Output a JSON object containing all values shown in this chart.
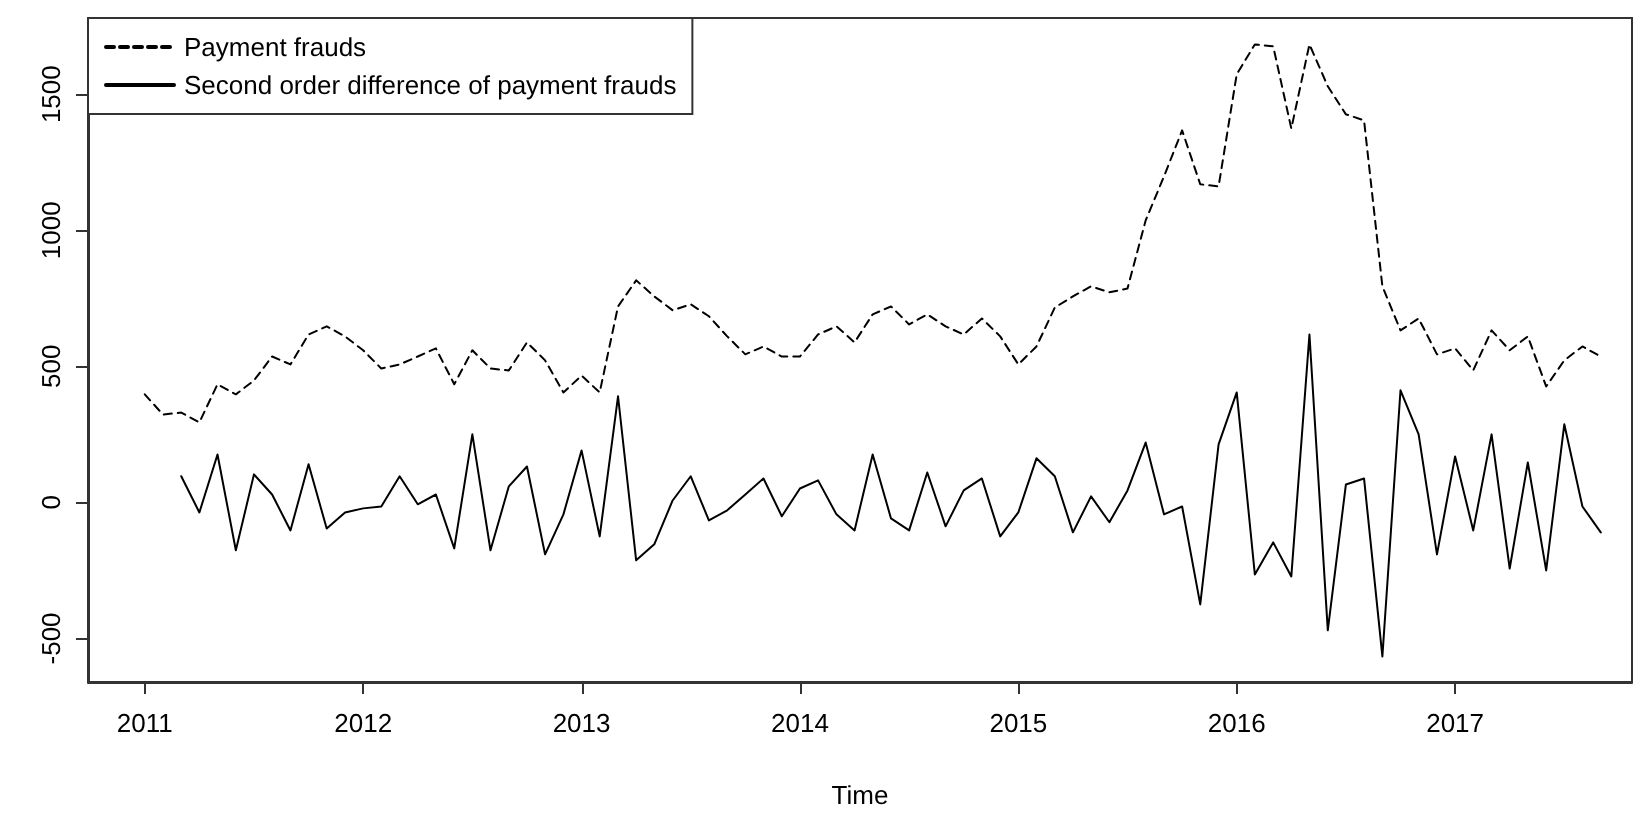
{
  "chart_data": {
    "type": "line",
    "xlabel": "Time",
    "x": [
      2011,
      2011.083,
      2011.167,
      2011.25,
      2011.333,
      2011.417,
      2011.5,
      2011.583,
      2011.667,
      2011.75,
      2011.833,
      2011.917,
      2012,
      2012.083,
      2012.167,
      2012.25,
      2012.333,
      2012.417,
      2012.5,
      2012.583,
      2012.667,
      2012.75,
      2012.833,
      2012.917,
      2013,
      2013.083,
      2013.167,
      2013.25,
      2013.333,
      2013.417,
      2013.5,
      2013.583,
      2013.667,
      2013.75,
      2013.833,
      2013.917,
      2014,
      2014.083,
      2014.167,
      2014.25,
      2014.333,
      2014.417,
      2014.5,
      2014.583,
      2014.667,
      2014.75,
      2014.833,
      2014.917,
      2015,
      2015.083,
      2015.167,
      2015.25,
      2015.333,
      2015.417,
      2015.5,
      2015.583,
      2015.667,
      2015.75,
      2015.833,
      2015.917,
      2016,
      2016.083,
      2016.167,
      2016.25,
      2016.333,
      2016.417,
      2016.5,
      2016.583,
      2016.667,
      2016.75,
      2016.833,
      2016.917,
      2017,
      2017.083,
      2017.167,
      2017.25,
      2017.333,
      2017.417,
      2017.5,
      2017.583,
      2017.667
    ],
    "series": [
      {
        "name": "Payment frauds",
        "color": "#000000",
        "line_style": "dashed",
        "values": [
          397,
          323,
          330,
          294,
          434,
          397,
          448,
          536,
          507,
          617,
          647,
          610,
          559,
          492,
          507,
          536,
          566,
          434,
          559,
          492,
          485,
          588,
          522,
          404,
          466,
          404,
          720,
          816,
          757,
          706,
          728,
          684,
          610,
          544,
          573,
          536,
          536,
          617,
          647,
          588,
          691,
          720,
          654,
          691,
          647,
          617,
          676,
          610,
          507,
          573,
          716,
          757,
          794,
          772,
          786,
          1036,
          1198,
          1367,
          1169,
          1161,
          1573,
          1683,
          1676,
          1374,
          1683,
          1529,
          1426,
          1404,
          794,
          632,
          676,
          544,
          566,
          485,
          632,
          559,
          610,
          426,
          522,
          573,
          536
        ]
      },
      {
        "name": "Second order difference of payment frauds",
        "color": "#000000",
        "line_style": "solid",
        "values": [
          null,
          null,
          96,
          -37,
          176,
          -176,
          103,
          29,
          -103,
          140,
          -96,
          -37,
          -22,
          -15,
          96,
          -7,
          29,
          -169,
          250,
          -176,
          59,
          132,
          -191,
          -44,
          191,
          -125,
          390,
          -213,
          -154,
          7,
          96,
          -66,
          -29,
          29,
          88,
          -51,
          51,
          81,
          -44,
          -103,
          176,
          -59,
          -103,
          110,
          -88,
          44,
          88,
          -125,
          -37,
          162,
          96,
          -110,
          22,
          -73,
          44,
          220,
          -44,
          -15,
          -375,
          213,
          404,
          -265,
          -147,
          -272,
          617,
          -470,
          66,
          88,
          -566,
          412,
          250,
          -191,
          169,
          -103,
          250,
          -243,
          147,
          -250,
          287,
          -15,
          -110
        ]
      }
    ],
    "xlim": [
      2010.74,
      2017.81
    ],
    "xticks": [
      2011,
      2012,
      2013,
      2014,
      2015,
      2016,
      2017
    ],
    "ylim": [
      -660,
      1780
    ],
    "yticks": [
      -500,
      0,
      500,
      1000,
      1500
    ],
    "legend": "top left",
    "grid": false,
    "marker": "none"
  }
}
